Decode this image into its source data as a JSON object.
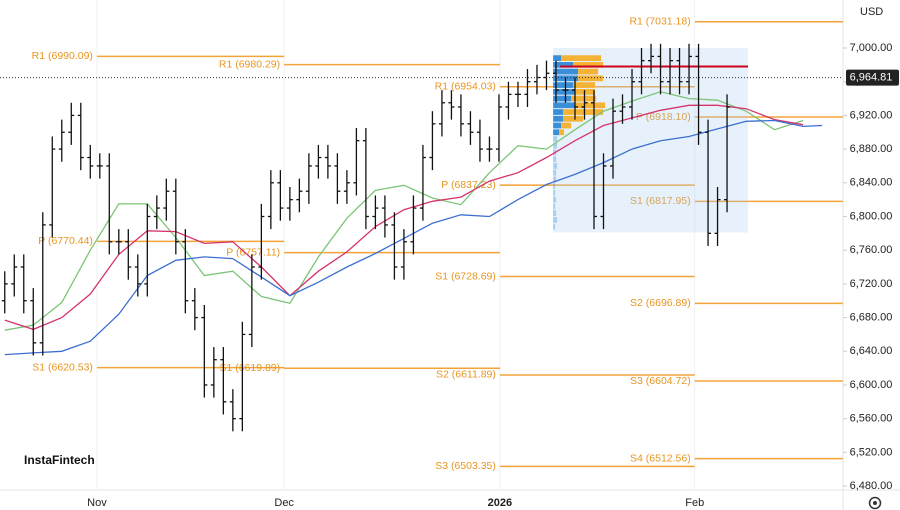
{
  "chart_data": {
    "type": "ohlc",
    "currency": "USD",
    "watermark": "InstaFintech",
    "xlim": [
      -0.5,
      88.2
    ],
    "xticks": [
      {
        "value": 9.7,
        "label": "Nov"
      },
      {
        "value": 29.4,
        "label": "Dec"
      },
      {
        "value": 52.1,
        "label": "2026"
      },
      {
        "value": 72.6,
        "label": "Feb"
      }
    ],
    "grid": "x",
    "ylim": [
      6475.3,
      7057.0
    ],
    "yticks": [
      {
        "value": 7000,
        "label": "7,000.00"
      },
      {
        "value": 6960,
        "label": "6,960.00"
      },
      {
        "value": 6920,
        "label": "6,920.00"
      },
      {
        "value": 6880,
        "label": "6,880.00"
      },
      {
        "value": 6840,
        "label": "6,840.00"
      },
      {
        "value": 6800,
        "label": "6,800.00"
      },
      {
        "value": 6760,
        "label": "6,760.00"
      },
      {
        "value": 6720,
        "label": "6,720.00"
      },
      {
        "value": 6680,
        "label": "6,680.00"
      },
      {
        "value": 6640,
        "label": "6,640.00"
      },
      {
        "value": 6600,
        "label": "6,600.00"
      },
      {
        "value": 6560,
        "label": "6,560.00"
      },
      {
        "value": 6520,
        "label": "6,520.00"
      },
      {
        "value": 6480,
        "label": "6,480.00"
      }
    ],
    "bar_color": "#111111",
    "open": [
      6700,
      6720,
      6740,
      6700,
      6650,
      6790,
      6880,
      6900,
      6920,
      6870,
      6860,
      6860,
      6770,
      6770,
      6740,
      6720,
      6800,
      6810,
      6830,
      6770,
      6700,
      6680,
      6600,
      6630,
      6580,
      6560,
      6660,
      6740,
      6800,
      6840,
      6810,
      6820,
      6830,
      6860,
      6870,
      6860,
      6830,
      6840,
      6890,
      6800,
      6810,
      6790,
      6740,
      6770,
      6810,
      6870,
      6910,
      6935,
      6930,
      6910,
      6900,
      6880,
      6880,
      6930,
      6945,
      6945,
      6960,
      6965,
      6970,
      6950,
      6950,
      6930,
      6935,
      6800,
      6860,
      6925,
      6930,
      6960,
      6985,
      6990,
      6960,
      6985,
      6960,
      6990,
      6900,
      6780,
      6820
    ],
    "high": [
      6735,
      6755,
      6755,
      6715,
      6805,
      6895,
      6915,
      6935,
      6935,
      6885,
      6875,
      6875,
      6785,
      6785,
      6755,
      6815,
      6825,
      6845,
      6845,
      6785,
      6715,
      6695,
      6645,
      6645,
      6595,
      6675,
      6755,
      6815,
      6855,
      6855,
      6835,
      6845,
      6875,
      6885,
      6885,
      6875,
      6855,
      6905,
      6905,
      6825,
      6825,
      6805,
      6785,
      6825,
      6885,
      6925,
      6950,
      6950,
      6945,
      6925,
      6915,
      6895,
      6945,
      6960,
      6960,
      6975,
      6980,
      6985,
      6985,
      6965,
      6965,
      6950,
      6950,
      6875,
      6940,
      6945,
      6975,
      7000,
      7005,
      7005,
      7000,
      7000,
      7005,
      7005,
      6915,
      6835,
      6945
    ],
    "low": [
      6685,
      6705,
      6685,
      6635,
      6635,
      6775,
      6865,
      6885,
      6855,
      6845,
      6845,
      6755,
      6755,
      6725,
      6705,
      6705,
      6785,
      6795,
      6755,
      6685,
      6665,
      6585,
      6585,
      6565,
      6545,
      6545,
      6645,
      6725,
      6785,
      6795,
      6795,
      6805,
      6815,
      6845,
      6845,
      6815,
      6815,
      6825,
      6785,
      6785,
      6775,
      6725,
      6725,
      6755,
      6795,
      6855,
      6895,
      6915,
      6895,
      6885,
      6865,
      6865,
      6865,
      6915,
      6930,
      6930,
      6945,
      6950,
      6935,
      6935,
      6915,
      6915,
      6785,
      6785,
      6845,
      6910,
      6915,
      6945,
      6970,
      6945,
      6945,
      6945,
      6945,
      6885,
      6765,
      6765,
      6805
    ],
    "close": [
      6720,
      6740,
      6700,
      6650,
      6790,
      6880,
      6900,
      6920,
      6870,
      6860,
      6860,
      6770,
      6770,
      6740,
      6720,
      6800,
      6810,
      6830,
      6770,
      6700,
      6680,
      6600,
      6630,
      6580,
      6560,
      6660,
      6740,
      6800,
      6840,
      6810,
      6820,
      6830,
      6860,
      6870,
      6860,
      6830,
      6840,
      6890,
      6800,
      6810,
      6790,
      6740,
      6770,
      6810,
      6870,
      6910,
      6935,
      6930,
      6910,
      6900,
      6880,
      6880,
      6930,
      6945,
      6945,
      6960,
      6965,
      6970,
      6950,
      6950,
      6930,
      6935,
      6800,
      6860,
      6925,
      6930,
      6960,
      6985,
      6990,
      6960,
      6985,
      6960,
      6990,
      6900,
      6780,
      6820,
      6930
    ],
    "lines": [
      {
        "color": "#7cc576",
        "x": [
          0,
          3,
          6,
          9,
          12,
          15,
          18,
          21,
          24,
          27,
          30,
          33,
          36,
          39,
          42,
          45,
          48,
          51,
          54,
          57,
          60,
          63,
          66,
          69,
          72,
          75,
          78,
          81,
          84
        ],
        "values": [
          6665,
          6671,
          6698,
          6760,
          6815,
          6815,
          6775,
          6730,
          6735,
          6705,
          6697,
          6752,
          6798,
          6831,
          6837,
          6822,
          6814,
          6852,
          6884,
          6880,
          6903,
          6925,
          6937,
          6948,
          6940,
          6938,
          6925,
          6903,
          6914
        ]
      },
      {
        "color": "#d6336c",
        "x": [
          0,
          3,
          6,
          9,
          12,
          15,
          18,
          21,
          24,
          27,
          30,
          33,
          36,
          39,
          42,
          45,
          48,
          51,
          54,
          57,
          60,
          63,
          66,
          69,
          72,
          75,
          78,
          81,
          84
        ],
        "values": [
          6677,
          6666,
          6680,
          6708,
          6755,
          6783,
          6782,
          6768,
          6770,
          6740,
          6706,
          6735,
          6758,
          6788,
          6808,
          6818,
          6823,
          6842,
          6852,
          6870,
          6890,
          6908,
          6917,
          6926,
          6932,
          6932,
          6928,
          6915,
          6909
        ]
      },
      {
        "color": "#3d6fd1",
        "x": [
          0,
          3,
          6,
          9,
          12,
          15,
          18,
          21,
          24,
          27,
          30,
          33,
          36,
          39,
          42,
          45,
          48,
          51,
          54,
          57,
          60,
          63,
          66,
          69,
          72,
          75,
          78,
          81,
          84,
          86
        ],
        "values": [
          6636,
          6638,
          6640,
          6652,
          6684,
          6730,
          6748,
          6752,
          6750,
          6728,
          6706,
          6722,
          6740,
          6756,
          6774,
          6792,
          6802,
          6800,
          6820,
          6838,
          6850,
          6864,
          6880,
          6890,
          6895,
          6904,
          6913,
          6914,
          6907,
          6908
        ]
      }
    ],
    "level_color": "#f2a33a",
    "levels": [
      {
        "label": "R1 (6990.09)",
        "value": 6990.09,
        "from": 9.7,
        "to": 29.4
      },
      {
        "label": "P (6770.44)",
        "value": 6770.44,
        "from": 9.7,
        "to": 29.4
      },
      {
        "label": "S1 (6620.53)",
        "value": 6620.53,
        "from": 9.7,
        "to": 29.4
      },
      {
        "label": "R1 (6980.29)",
        "value": 6980.29,
        "from": 29.4,
        "to": 52.1
      },
      {
        "label": "P (6757.11)",
        "value": 6757.11,
        "from": 29.4,
        "to": 52.1
      },
      {
        "label": "S1 (6619.89)",
        "value": 6619.89,
        "from": 29.4,
        "to": 52.1
      },
      {
        "label": "R1 (6954.03)",
        "value": 6954.03,
        "from": 52.1,
        "to": 72.6
      },
      {
        "label": "P (6837.23)",
        "value": 6837.23,
        "from": 52.1,
        "to": 72.6
      },
      {
        "label": "S1 (6728.69)",
        "value": 6728.69,
        "from": 52.1,
        "to": 72.6
      },
      {
        "label": "S2 (6611.89)",
        "value": 6611.89,
        "from": 52.1,
        "to": 72.6
      },
      {
        "label": "S3 (6503.35)",
        "value": 6503.35,
        "from": 52.1,
        "to": 72.6
      },
      {
        "label": "R1 (7031.18)",
        "value": 7031.18,
        "from": 72.6,
        "to": 88.2
      },
      {
        "label": "P (6918.10)",
        "value": 6918.1,
        "from": 72.6,
        "to": 88.2
      },
      {
        "label": "S1 (6817.95)",
        "value": 6817.95,
        "from": 72.6,
        "to": 88.2
      },
      {
        "label": "S2 (6696.89)",
        "value": 6696.89,
        "from": 72.6,
        "to": 88.2
      },
      {
        "label": "S3 (6604.72)",
        "value": 6604.72,
        "from": 72.6,
        "to": 88.2
      },
      {
        "label": "S4 (6512.56)",
        "value": 6512.56,
        "from": 72.6,
        "to": 88.2
      }
    ],
    "last": {
      "value": 6964.81,
      "label": "6,964.81"
    },
    "profile": {
      "xlim": [
        57.7,
        78.2
      ],
      "ylim": [
        6781,
        7000
      ],
      "vlim": [
        0,
        195
      ],
      "row": 8,
      "buy_color": "#3a8fd9",
      "sell_color": "#f5b335",
      "poc_color": "#d0021b",
      "poc": 6978,
      "price": [
        6988,
        6980,
        6972,
        6964,
        6956,
        6948,
        6940,
        6932,
        6924,
        6916,
        6908,
        6900,
        6892,
        6884,
        6876,
        6868,
        6860,
        6852,
        6844,
        6836,
        6828,
        6820,
        6812,
        6804,
        6796,
        6788
      ],
      "buy": [
        8,
        20,
        25,
        25,
        20,
        22,
        18,
        22,
        10,
        10,
        8,
        6,
        4,
        4,
        3,
        3,
        4,
        3,
        3,
        2,
        2,
        3,
        2,
        3,
        4,
        2
      ],
      "sell": [
        40,
        30,
        20,
        25,
        22,
        20,
        25,
        30,
        40,
        20,
        10,
        5,
        0,
        0,
        0,
        0,
        0,
        0,
        0,
        0,
        0,
        0,
        0,
        0,
        0,
        0
      ]
    }
  }
}
